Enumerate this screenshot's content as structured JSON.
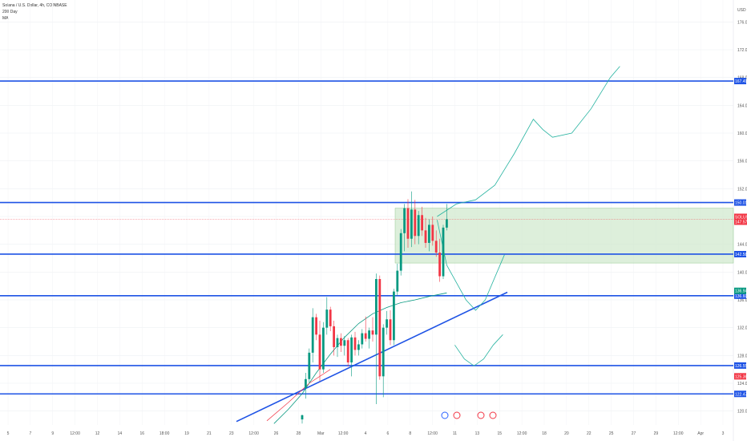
{
  "chart_data": {
    "type": "candlestick",
    "title": "Solana / U.S. Dollar, 4h, COINBASE",
    "indicators": [
      "200 Day",
      "MA"
    ],
    "currency": "USD",
    "ylim": [
      118,
      178
    ],
    "y_ticks": [
      "176.00",
      "172.00",
      "168.00",
      "164.00",
      "160.00",
      "156.00",
      "152.00",
      "148.00",
      "144.00",
      "140.00",
      "136.00",
      "132.00",
      "128.00",
      "124.00",
      "120.00"
    ],
    "x_ticks": [
      "5",
      "7",
      "9",
      "12:00",
      "12",
      "14",
      "16",
      "18:00",
      "19",
      "21",
      "23",
      "12:00",
      "26",
      "28",
      "Mar",
      "12:00",
      "4",
      "6",
      "8",
      "12:00",
      "11",
      "13",
      "15",
      "12:00",
      "18",
      "20",
      "22",
      "25",
      "27",
      "29",
      "12:00",
      "Apr",
      "3"
    ],
    "current_price": {
      "symbol": "SOLUSD",
      "value": "147.57",
      "sub": "01:04",
      "color": "#f23645"
    },
    "ma_badge": {
      "value": "136.94",
      "color": "#089981"
    },
    "horizontal_levels": [
      {
        "value": 167.49,
        "label": "167.49"
      },
      {
        "value": 150.01,
        "label": "150.01"
      },
      {
        "value": 142.58,
        "label": "142.58"
      },
      {
        "value": 136.6,
        "label": "136.60"
      },
      {
        "value": 126.55,
        "label": "126.55"
      },
      {
        "value": 122.47,
        "label": "122.47"
      }
    ],
    "red_level_label": "125.36",
    "zone": {
      "top": 149.2,
      "bottom": 141.3,
      "color": "#cfe8cc"
    },
    "trendline": {
      "from": [
        -30,
        118.5
      ],
      "to": [
        65,
        137.1
      ],
      "color": "#1e53e5"
    },
    "candles": [
      {
        "i": 0,
        "o": 118.8,
        "h": 119.5,
        "l": 118.2,
        "c": 119.4
      },
      {
        "i": 1,
        "o": 123.3,
        "h": 125.5,
        "l": 121.8,
        "c": 124.6
      },
      {
        "i": 2,
        "o": 124.6,
        "h": 129.0,
        "l": 124.0,
        "c": 128.4
      },
      {
        "i": 3,
        "o": 128.4,
        "h": 134.8,
        "l": 127.0,
        "c": 133.5
      },
      {
        "i": 4,
        "o": 133.5,
        "h": 134.0,
        "l": 130.2,
        "c": 131.0
      },
      {
        "i": 5,
        "o": 131.0,
        "h": 133.0,
        "l": 124.3,
        "c": 126.0
      },
      {
        "i": 6,
        "o": 126.0,
        "h": 132.8,
        "l": 125.5,
        "c": 132.0
      },
      {
        "i": 7,
        "o": 132.0,
        "h": 136.4,
        "l": 131.0,
        "c": 134.6
      },
      {
        "i": 8,
        "o": 134.6,
        "h": 135.0,
        "l": 131.5,
        "c": 132.2
      },
      {
        "i": 9,
        "o": 132.2,
        "h": 133.0,
        "l": 128.0,
        "c": 129.2
      },
      {
        "i": 10,
        "o": 129.2,
        "h": 131.0,
        "l": 127.8,
        "c": 130.5
      },
      {
        "i": 11,
        "o": 130.5,
        "h": 131.2,
        "l": 128.5,
        "c": 129.4
      },
      {
        "i": 12,
        "o": 129.4,
        "h": 130.8,
        "l": 128.0,
        "c": 130.2
      },
      {
        "i": 13,
        "o": 130.2,
        "h": 130.5,
        "l": 126.4,
        "c": 127.0
      },
      {
        "i": 14,
        "o": 127.0,
        "h": 131.0,
        "l": 125.0,
        "c": 130.6
      },
      {
        "i": 15,
        "o": 130.6,
        "h": 131.4,
        "l": 128.0,
        "c": 128.8
      },
      {
        "i": 16,
        "o": 128.8,
        "h": 130.2,
        "l": 128.0,
        "c": 129.6
      },
      {
        "i": 17,
        "o": 129.6,
        "h": 131.8,
        "l": 129.0,
        "c": 131.2
      },
      {
        "i": 18,
        "o": 131.2,
        "h": 133.6,
        "l": 130.0,
        "c": 130.4
      },
      {
        "i": 19,
        "o": 130.4,
        "h": 132.0,
        "l": 129.0,
        "c": 131.6
      },
      {
        "i": 20,
        "o": 131.6,
        "h": 133.5,
        "l": 130.0,
        "c": 131.0
      },
      {
        "i": 21,
        "o": 131.0,
        "h": 139.8,
        "l": 121.0,
        "c": 139.0
      },
      {
        "i": 22,
        "o": 139.0,
        "h": 139.5,
        "l": 124.5,
        "c": 125.0
      },
      {
        "i": 23,
        "o": 125.0,
        "h": 132.5,
        "l": 122.0,
        "c": 132.0
      },
      {
        "i": 24,
        "o": 132.0,
        "h": 134.4,
        "l": 131.0,
        "c": 133.2
      },
      {
        "i": 25,
        "o": 133.2,
        "h": 134.5,
        "l": 129.5,
        "c": 130.2
      },
      {
        "i": 26,
        "o": 130.2,
        "h": 137.6,
        "l": 129.5,
        "c": 137.2
      },
      {
        "i": 27,
        "o": 137.2,
        "h": 141.2,
        "l": 136.6,
        "c": 140.2
      },
      {
        "i": 28,
        "o": 140.2,
        "h": 146.2,
        "l": 139.5,
        "c": 145.6
      },
      {
        "i": 29,
        "o": 145.6,
        "h": 149.8,
        "l": 143.0,
        "c": 149.2
      },
      {
        "i": 30,
        "o": 149.2,
        "h": 150.5,
        "l": 143.5,
        "c": 144.8
      },
      {
        "i": 31,
        "o": 144.8,
        "h": 151.6,
        "l": 143.6,
        "c": 149.0
      },
      {
        "i": 32,
        "o": 149.0,
        "h": 150.4,
        "l": 144.0,
        "c": 145.2
      },
      {
        "i": 33,
        "o": 145.2,
        "h": 148.8,
        "l": 144.0,
        "c": 148.2
      },
      {
        "i": 34,
        "o": 148.2,
        "h": 149.4,
        "l": 145.2,
        "c": 146.0
      },
      {
        "i": 35,
        "o": 146.0,
        "h": 147.8,
        "l": 143.5,
        "c": 144.2
      },
      {
        "i": 36,
        "o": 144.2,
        "h": 147.6,
        "l": 143.0,
        "c": 146.8
      },
      {
        "i": 37,
        "o": 146.8,
        "h": 148.0,
        "l": 143.8,
        "c": 144.5
      },
      {
        "i": 38,
        "o": 144.5,
        "h": 146.0,
        "l": 142.2,
        "c": 142.8
      },
      {
        "i": 39,
        "o": 142.8,
        "h": 144.8,
        "l": 138.6,
        "c": 139.4
      },
      {
        "i": 40,
        "o": 139.4,
        "h": 146.8,
        "l": 139.0,
        "c": 146.4
      },
      {
        "i": 41,
        "o": 146.4,
        "h": 149.8,
        "l": 146.0,
        "c": 147.6
      }
    ],
    "ma_line": [
      [
        -8,
        118.2
      ],
      [
        -4,
        120.2
      ],
      [
        0,
        122.5
      ],
      [
        4,
        125.5
      ],
      [
        8,
        128.2
      ],
      [
        12,
        130.6
      ],
      [
        16,
        132.6
      ],
      [
        20,
        134.0
      ],
      [
        24,
        134.9
      ],
      [
        28,
        135.6
      ],
      [
        32,
        136.0
      ],
      [
        36,
        136.5
      ],
      [
        41,
        137.0
      ]
    ],
    "red_line": [
      [
        -10,
        118.6
      ],
      [
        -4,
        121.2
      ],
      [
        2,
        124.0
      ],
      [
        8,
        126.0
      ]
    ],
    "projection": [
      [
        -1,
        148.0
      ],
      [
        1,
        149.8
      ],
      [
        3,
        150.4
      ],
      [
        5,
        152.5
      ],
      [
        7,
        157.0
      ],
      [
        9,
        162.0
      ],
      [
        10,
        160.5
      ],
      [
        11,
        159.4
      ],
      [
        13,
        160.0
      ],
      [
        15,
        163.5
      ],
      [
        17,
        168.0
      ],
      [
        18,
        169.6
      ]
    ],
    "projection_down": [
      [
        -1,
        147.5
      ],
      [
        0,
        141.0
      ],
      [
        1,
        138.5
      ],
      [
        2,
        136.0
      ],
      [
        3,
        134.5
      ],
      [
        4,
        136.0
      ],
      [
        6,
        142.5
      ]
    ],
    "projection_low": [
      [
        0,
        129.5
      ],
      [
        1,
        127.5
      ],
      [
        2,
        126.5
      ],
      [
        3,
        127.5
      ],
      [
        4,
        129.5
      ],
      [
        5,
        131.0
      ]
    ],
    "events": [
      "E",
      "US",
      "US",
      "US"
    ]
  }
}
